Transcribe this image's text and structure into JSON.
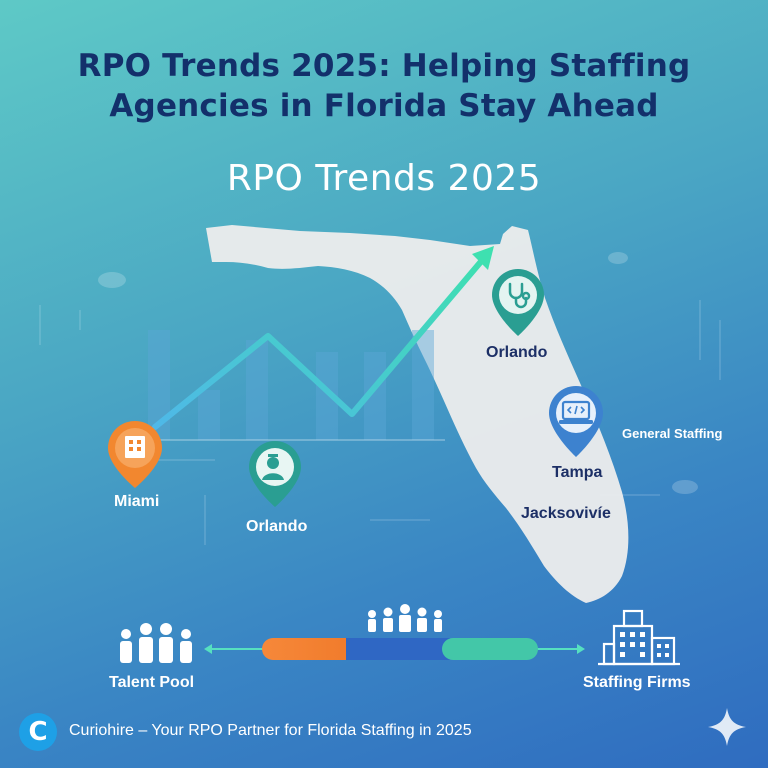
{
  "header": {
    "title_line1": "RPO Trends 2025: Helping Staffing",
    "title_line2": "Agencies in Florida Stay Ahead",
    "subtitle": "RPO Trends 2025"
  },
  "map_labels": {
    "miami": "Miami",
    "orlando_left": "Orlando",
    "orlando_north": "Orlando",
    "tampa": "Tampa",
    "jacksonville": "Jacksovivíe",
    "general_staffing": "General Staffing"
  },
  "flow": {
    "left_label": "Talent Pool",
    "right_label": "Staffing Firms"
  },
  "footer": {
    "logo_letter": "C",
    "tagline": "Curiohire – Your RPO Partner for Florida Staffing in 2025"
  },
  "colors": {
    "title": "#13306b",
    "pin_orange": "#f2872f",
    "pin_teal": "#2a9e92",
    "pin_blue": "#3d82cf",
    "trend_line": "#3ee0b0",
    "brand_badge": "#1ea0e6"
  },
  "icons": {
    "miami_pin": "building-icon",
    "orlando_left_pin": "nurse-icon",
    "orlando_north_pin": "stethoscope-icon",
    "tampa_pin": "laptop-code-icon",
    "talent_pool": "people-group-icon",
    "staffing_firms": "office-building-icon",
    "sparkle": "sparkle-icon"
  }
}
